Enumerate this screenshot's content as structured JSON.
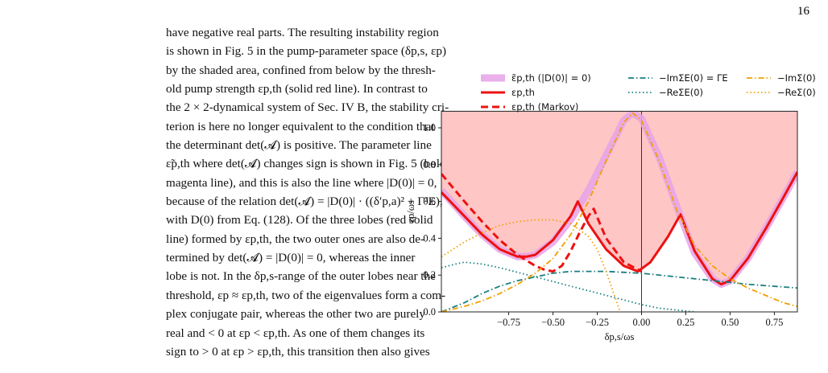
{
  "page_number": "16",
  "body": {
    "lines": [
      "have negative real parts. The resulting instability region",
      "is shown in Fig. 5 in the pump-parameter space (δp,s, εp)",
      "by the shaded area, confined from below by the thresh-",
      "old pump strength εp,th (solid red line). In contrast to",
      "the 2 × 2-dynamical system of Sec. IV B, the stability cri-",
      "terion is here no longer equivalent to the condition that",
      "the determinant det(𝓐) is positive. The parameter line",
      "ε̃p,th where det(𝓐) changes sign is shown in Fig. 5 (bold",
      "magenta line), and this is also the line where |D(0)| = 0,",
      "because of the relation det(𝓐) = |D(0)| · ((δ′p,a)² + Γ²E),",
      "with D(0) from Eq. (128). Of the three lobes (red solid",
      "line) formed by εp,th, the two outer ones are also de-",
      "termined by det(𝓐) = |D(0)| = 0, whereas the inner",
      "lobe is not. In the δp,s-range of the outer lobes near the",
      "threshold, εp ≈ εp,th, two of the eigenvalues form a com-",
      "plex conjugate pair, whereas the other two are purely",
      "real and < 0 at εp < εp,th. As one of them changes its",
      "sign to > 0 at εp > εp,th, this transition then also gives"
    ]
  },
  "chart_data": {
    "type": "line",
    "x_label": "δp,s/ωs",
    "y_label": "εp/ωs",
    "xlim": [
      -1.13,
      0.88
    ],
    "ylim": [
      0,
      1.09
    ],
    "xticks": [
      {
        "value": -0.75,
        "label": "−0.75"
      },
      {
        "value": -0.5,
        "label": "−0.50"
      },
      {
        "value": -0.25,
        "label": "−0.25"
      },
      {
        "value": 0,
        "label": "0.00"
      },
      0.25,
      {
        "value": 0.5,
        "label": "0.50"
      },
      0.75
    ],
    "yticks": [
      {
        "value": 0,
        "label": "0.0"
      },
      0.2,
      0.4,
      0.6,
      0.8,
      {
        "value": 1,
        "label": "1.0"
      }
    ],
    "vline_x": 0,
    "shade_color": "#ffc6c6",
    "shade_below_series": 1,
    "series": [
      {
        "name": "ε̃p,th (|D(0)| = 0)",
        "color": "#e6a3e6",
        "linestyle": "thick",
        "x": [
          -1.13,
          -1.0,
          -0.9,
          -0.8,
          -0.7,
          -0.65,
          -0.6,
          -0.5,
          -0.4,
          -0.3,
          -0.2,
          -0.1,
          -0.05,
          0,
          0.1,
          0.2,
          0.3,
          0.4,
          0.45,
          0.5,
          0.6,
          0.7,
          0.8,
          0.88
        ],
        "values": [
          0.66,
          0.52,
          0.42,
          0.34,
          0.3,
          0.3,
          0.31,
          0.38,
          0.5,
          0.66,
          0.85,
          1.04,
          1.08,
          1.05,
          0.84,
          0.57,
          0.32,
          0.18,
          0.15,
          0.17,
          0.29,
          0.45,
          0.62,
          0.76
        ]
      },
      {
        "name": "εp,th",
        "color": "#ee1111",
        "linestyle": "solid",
        "x": [
          -1.13,
          -1.0,
          -0.9,
          -0.8,
          -0.7,
          -0.65,
          -0.6,
          -0.5,
          -0.4,
          -0.36,
          -0.3,
          -0.2,
          -0.1,
          -0.02,
          0.05,
          0.15,
          0.22,
          0.3,
          0.4,
          0.45,
          0.5,
          0.6,
          0.7,
          0.8,
          0.88
        ],
        "values": [
          0.65,
          0.52,
          0.42,
          0.34,
          0.3,
          0.3,
          0.31,
          0.39,
          0.52,
          0.6,
          0.48,
          0.34,
          0.25,
          0.22,
          0.27,
          0.41,
          0.53,
          0.33,
          0.18,
          0.15,
          0.17,
          0.29,
          0.45,
          0.62,
          0.76
        ]
      },
      {
        "name": "εp,th (Markov)",
        "color": "#ee1111",
        "linestyle": "dashed",
        "x": [
          -1.13,
          -1.0,
          -0.9,
          -0.8,
          -0.7,
          -0.6,
          -0.55,
          -0.5,
          -0.45,
          -0.4,
          -0.35,
          -0.3,
          -0.27,
          -0.2,
          -0.1,
          0
        ],
        "values": [
          0.75,
          0.6,
          0.49,
          0.39,
          0.31,
          0.25,
          0.23,
          0.22,
          0.25,
          0.33,
          0.43,
          0.52,
          0.56,
          0.4,
          0.27,
          0.22
        ]
      },
      {
        "name": "−ImΣE(0) = ΓE",
        "color": "#1a7f80",
        "linestyle": "dashdot",
        "x": [
          -1.13,
          -1.0,
          -0.9,
          -0.8,
          -0.7,
          -0.6,
          -0.5,
          -0.4,
          -0.3,
          -0.2,
          0,
          0.2,
          0.4,
          0.6,
          0.88
        ],
        "values": [
          0.0,
          0.05,
          0.1,
          0.14,
          0.17,
          0.19,
          0.21,
          0.22,
          0.22,
          0.22,
          0.21,
          0.19,
          0.17,
          0.15,
          0.13
        ]
      },
      {
        "name": "−ReΣE(0)",
        "color": "#1a7f80",
        "linestyle": "dotted",
        "x": [
          -1.13,
          -1.05,
          -1.0,
          -0.9,
          -0.8,
          -0.6,
          -0.4,
          -0.2,
          0,
          0.1,
          0.2,
          0.3
        ],
        "values": [
          0.24,
          0.26,
          0.27,
          0.26,
          0.24,
          0.19,
          0.14,
          0.09,
          0.04,
          0.02,
          0.01,
          0.0
        ]
      },
      {
        "name": "−ImΣ(0)",
        "color": "#f0a000",
        "linestyle": "dashdot",
        "x": [
          -1.13,
          -1.0,
          -0.9,
          -0.8,
          -0.7,
          -0.6,
          -0.5,
          -0.4,
          -0.3,
          -0.2,
          -0.1,
          -0.05,
          0,
          0.1,
          0.2,
          0.3,
          0.4,
          0.5,
          0.6,
          0.7,
          0.8,
          0.88
        ],
        "values": [
          0.0,
          0.03,
          0.06,
          0.1,
          0.15,
          0.21,
          0.29,
          0.42,
          0.6,
          0.82,
          1.03,
          1.08,
          1.04,
          0.82,
          0.55,
          0.36,
          0.25,
          0.18,
          0.13,
          0.09,
          0.05,
          0.03
        ]
      },
      {
        "name": "−ReΣ(0)",
        "color": "#f0a000",
        "linestyle": "dotted",
        "x": [
          -1.13,
          -1.0,
          -0.9,
          -0.8,
          -0.7,
          -0.6,
          -0.5,
          -0.4,
          -0.3,
          -0.25,
          -0.2,
          -0.15,
          -0.12
        ],
        "values": [
          0.3,
          0.38,
          0.43,
          0.47,
          0.49,
          0.5,
          0.5,
          0.48,
          0.41,
          0.34,
          0.22,
          0.08,
          0.0
        ]
      }
    ]
  }
}
